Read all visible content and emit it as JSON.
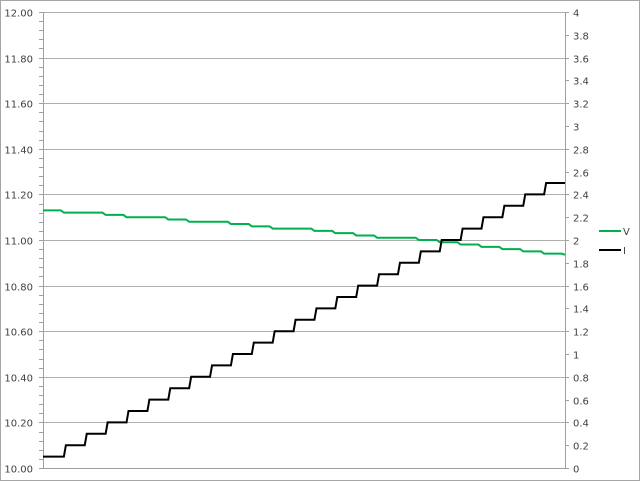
{
  "chart_data": {
    "type": "line",
    "title": "",
    "xlabel": "",
    "ylabel": "",
    "y_left": {
      "range": [
        10.0,
        12.0
      ],
      "step": 0.2,
      "ticks": [
        "10.00",
        "10.20",
        "10.40",
        "10.60",
        "10.80",
        "11.00",
        "11.20",
        "11.40",
        "11.60",
        "11.80",
        "12.00"
      ]
    },
    "y_right": {
      "range": [
        0,
        4
      ],
      "step": 0.2,
      "ticks": [
        "0",
        "0.2",
        "0.4",
        "0.6",
        "0.8",
        "1",
        "1.2",
        "1.4",
        "1.6",
        "1.8",
        "2",
        "2.2",
        "2.4",
        "2.6",
        "2.8",
        "3",
        "3.2",
        "3.4",
        "3.6",
        "3.8",
        "4"
      ]
    },
    "grid": true,
    "legend": "right",
    "series": [
      {
        "name": "V",
        "axis": "left",
        "color": "#00b050",
        "style": "line",
        "values": [
          11.13,
          11.12,
          11.12,
          11.11,
          11.1,
          11.1,
          11.09,
          11.08,
          11.08,
          11.07,
          11.06,
          11.05,
          11.05,
          11.04,
          11.03,
          11.02,
          11.01,
          11.01,
          11.0,
          10.99,
          10.98,
          10.97,
          10.96,
          10.95,
          10.94,
          10.935
        ]
      },
      {
        "name": "I",
        "axis": "right",
        "color": "#000000",
        "style": "step",
        "values": [
          0.1,
          0.2,
          0.3,
          0.4,
          0.5,
          0.6,
          0.7,
          0.8,
          0.9,
          1.0,
          1.1,
          1.2,
          1.3,
          1.4,
          1.5,
          1.6,
          1.7,
          1.8,
          1.9,
          2.0,
          2.1,
          2.2,
          2.3,
          2.4,
          2.5
        ]
      }
    ]
  }
}
